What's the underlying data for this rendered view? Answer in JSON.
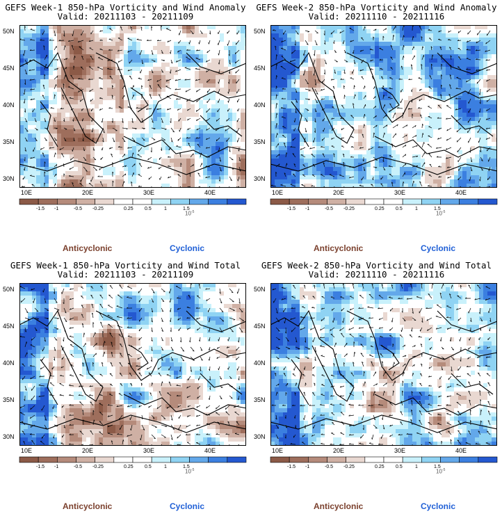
{
  "panels": [
    {
      "title": "GEFS Week-1 850-hPa Vorticity and Wind Anomaly",
      "valid": "Valid: 20211103 - 20211109",
      "seed": 11,
      "blue_bias": 0.0
    },
    {
      "title": "GEFS Week-2 850-hPa Vorticity and Wind Anomaly",
      "valid": "Valid: 20211110 - 20211116",
      "seed": 29,
      "blue_bias": 0.15
    },
    {
      "title": "GEFS Week-1 850-hPa Vorticity and Wind Total",
      "valid": "Valid: 20211103 - 20211109",
      "seed": 47,
      "blue_bias": 0.0
    },
    {
      "title": "GEFS Week-2 850-hPa Vorticity and Wind Total",
      "valid": "Valid: 20211110 - 20211116",
      "seed": 83,
      "blue_bias": 0.1
    }
  ],
  "lat_labels": [
    "50N",
    "45N",
    "40N",
    "35N",
    "30N"
  ],
  "lon_labels": [
    "10E",
    "20E",
    "30E",
    "40E"
  ],
  "colorbar": {
    "labels": [
      "-1.5",
      "-1",
      "-0.5",
      "-0.25",
      "0.25",
      "0.5",
      "1",
      "1.5"
    ],
    "unit": "10",
    "unit_exp": "-5",
    "colors": [
      "#8c5a47",
      "#9e6e5c",
      "#b58b7b",
      "#cfb0a4",
      "#e9d8d1",
      "#ffffff",
      "#ffffff",
      "#c9f1fb",
      "#8fd3f3",
      "#63a8ea",
      "#3b7fe0",
      "#2458d0"
    ]
  },
  "legend": {
    "anticyclonic": "Anticyclonic",
    "cyclonic": "Cyclonic",
    "anticyclonic_color": "#7a3f2c",
    "cyclonic_color": "#1f5fd6"
  }
}
